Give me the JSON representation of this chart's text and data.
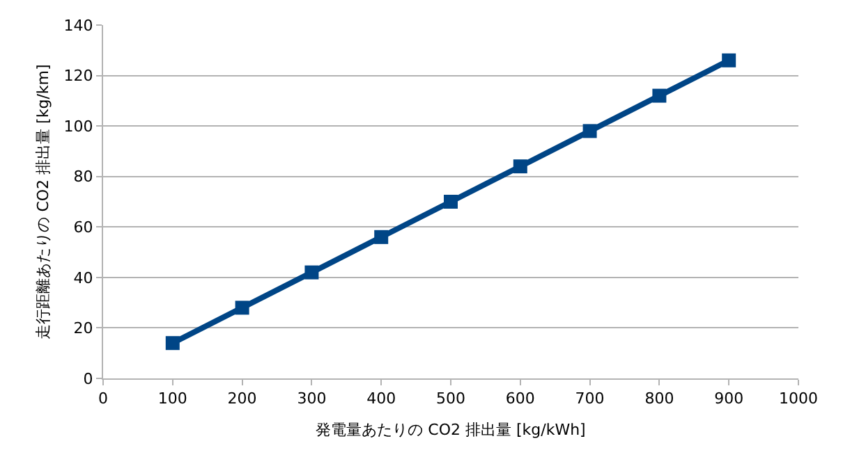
{
  "chart_data": {
    "type": "line",
    "xlabel": "発電量あたりの CO2 排出量 [kg/kWh]",
    "ylabel": "走行距離あたりの CO2 排出量 [kg/km]",
    "x": [
      100,
      200,
      300,
      400,
      500,
      600,
      700,
      800,
      900
    ],
    "series": [
      {
        "color": "#004586",
        "values": [
          14,
          28,
          42,
          56,
          70,
          84,
          98,
          112,
          126
        ]
      }
    ],
    "xlim": [
      0,
      1000
    ],
    "xticks": [
      0,
      100,
      200,
      300,
      400,
      500,
      600,
      700,
      800,
      900,
      1000
    ],
    "ylim": [
      0,
      140
    ],
    "yticks": [
      0,
      20,
      40,
      60,
      80,
      100,
      120,
      140
    ],
    "grid": "y",
    "marker": "square",
    "line_style": "solid"
  }
}
